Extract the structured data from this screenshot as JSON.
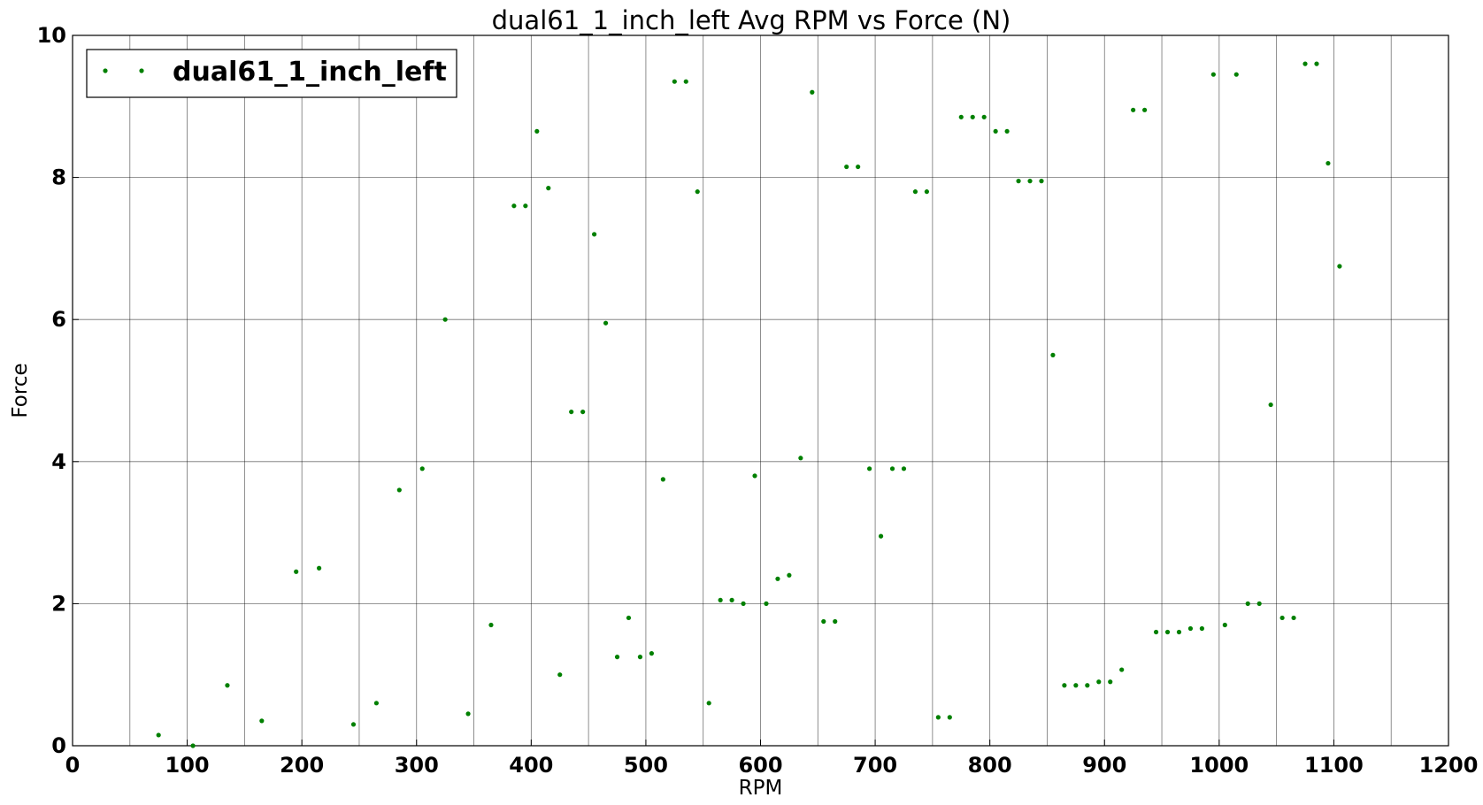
{
  "chart_data": {
    "type": "scatter",
    "title": "dual61_1_inch_left Avg RPM vs Force (N)",
    "xlabel": "RPM",
    "ylabel": "Force",
    "xlim": [
      0,
      1200
    ],
    "ylim": [
      0,
      10
    ],
    "x_ticks": [
      0,
      100,
      200,
      300,
      400,
      500,
      600,
      700,
      800,
      900,
      1000,
      1100,
      1200
    ],
    "y_ticks": [
      0,
      2,
      4,
      6,
      8,
      10
    ],
    "x_grid_step": 50,
    "grid": true,
    "legend": {
      "placement": "top-left",
      "entries": [
        "dual61_1_inch_left"
      ]
    },
    "series": [
      {
        "name": "dual61_1_inch_left",
        "color": "#008000",
        "marker": "point",
        "points": [
          [
            75,
            0.15
          ],
          [
            105,
            0.0
          ],
          [
            135,
            0.85
          ],
          [
            165,
            0.35
          ],
          [
            195,
            2.45
          ],
          [
            215,
            2.5
          ],
          [
            245,
            0.3
          ],
          [
            265,
            0.6
          ],
          [
            285,
            3.6
          ],
          [
            305,
            3.9
          ],
          [
            325,
            6.0
          ],
          [
            345,
            0.45
          ],
          [
            365,
            1.7
          ],
          [
            385,
            7.6
          ],
          [
            395,
            7.6
          ],
          [
            405,
            8.65
          ],
          [
            415,
            7.85
          ],
          [
            425,
            1.0
          ],
          [
            435,
            4.7
          ],
          [
            445,
            4.7
          ],
          [
            455,
            7.2
          ],
          [
            465,
            5.95
          ],
          [
            475,
            1.25
          ],
          [
            485,
            1.8
          ],
          [
            495,
            1.25
          ],
          [
            505,
            1.3
          ],
          [
            515,
            3.75
          ],
          [
            525,
            9.35
          ],
          [
            535,
            9.35
          ],
          [
            545,
            7.8
          ],
          [
            555,
            0.6
          ],
          [
            565,
            2.05
          ],
          [
            575,
            2.05
          ],
          [
            585,
            2.0
          ],
          [
            595,
            3.8
          ],
          [
            605,
            2.0
          ],
          [
            615,
            2.35
          ],
          [
            625,
            2.4
          ],
          [
            635,
            4.05
          ],
          [
            645,
            9.2
          ],
          [
            655,
            1.75
          ],
          [
            665,
            1.75
          ],
          [
            675,
            8.15
          ],
          [
            685,
            8.15
          ],
          [
            695,
            3.9
          ],
          [
            705,
            2.95
          ],
          [
            715,
            3.9
          ],
          [
            725,
            3.9
          ],
          [
            735,
            7.8
          ],
          [
            745,
            7.8
          ],
          [
            755,
            0.4
          ],
          [
            765,
            0.4
          ],
          [
            775,
            8.85
          ],
          [
            785,
            8.85
          ],
          [
            795,
            8.85
          ],
          [
            805,
            8.65
          ],
          [
            815,
            8.65
          ],
          [
            825,
            7.95
          ],
          [
            835,
            7.95
          ],
          [
            845,
            7.95
          ],
          [
            855,
            5.5
          ],
          [
            865,
            0.85
          ],
          [
            875,
            0.85
          ],
          [
            885,
            0.85
          ],
          [
            895,
            0.9
          ],
          [
            905,
            0.9
          ],
          [
            915,
            1.07
          ],
          [
            925,
            8.95
          ],
          [
            935,
            8.95
          ],
          [
            945,
            1.6
          ],
          [
            955,
            1.6
          ],
          [
            965,
            1.6
          ],
          [
            975,
            1.65
          ],
          [
            985,
            1.65
          ],
          [
            995,
            9.45
          ],
          [
            1005,
            1.7
          ],
          [
            1015,
            9.45
          ],
          [
            1025,
            2.0
          ],
          [
            1035,
            2.0
          ],
          [
            1045,
            4.8
          ],
          [
            1055,
            1.8
          ],
          [
            1065,
            1.8
          ],
          [
            1075,
            9.6
          ],
          [
            1085,
            9.6
          ],
          [
            1095,
            8.2
          ],
          [
            1105,
            6.75
          ]
        ]
      }
    ]
  }
}
